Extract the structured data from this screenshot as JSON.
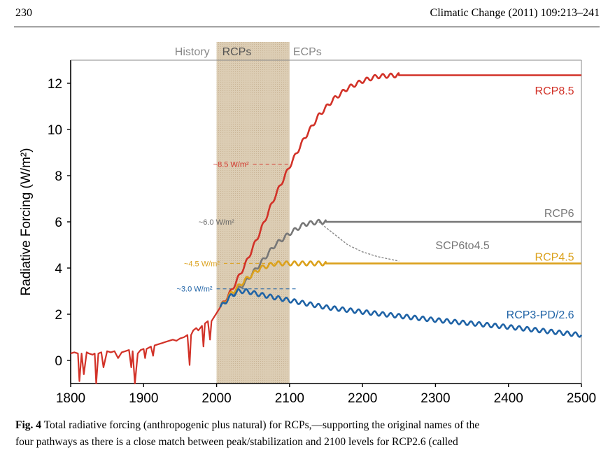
{
  "header": {
    "page_number": "230",
    "journal": "Climatic Change (2011) 109:213–241"
  },
  "caption": {
    "label": "Fig. 4",
    "text": "Total radiative forcing (anthropogenic plus natural) for RCPs,—supporting the original names of the",
    "text_cut": "four pathways as there is a close match between peak/stabilization and 2100 levels for RCP2.6 (called"
  },
  "chart_data": {
    "type": "line",
    "ylabel": "Radiative Forcing (W/m²)",
    "xlabel": "",
    "xlim": [
      1800,
      2500
    ],
    "ylim": [
      -1,
      13
    ],
    "x_ticks": [
      1800,
      1900,
      2000,
      2100,
      2200,
      2300,
      2400,
      2500
    ],
    "y_ticks": [
      0,
      2,
      4,
      6,
      8,
      10,
      12
    ],
    "grid": false,
    "periods": [
      {
        "label": "History",
        "range": [
          1800,
          2000
        ],
        "color": "#888888"
      },
      {
        "label": "RCPs",
        "range": [
          2000,
          2100
        ],
        "color": "#555555",
        "shade": "#dccdb4"
      },
      {
        "label": "ECPs",
        "range": [
          2100,
          2500
        ],
        "color": "#888888"
      }
    ],
    "series": [
      {
        "name": "RCP8.5",
        "color": "#d23228",
        "dash": false,
        "x": [
          2005,
          2020,
          2040,
          2060,
          2080,
          2100,
          2120,
          2140,
          2160,
          2180,
          2200,
          2220,
          2250,
          2300,
          2500
        ],
        "y": [
          2.3,
          3.0,
          4.2,
          5.6,
          7.1,
          8.4,
          9.6,
          10.6,
          11.3,
          11.8,
          12.1,
          12.3,
          12.35,
          12.35,
          12.35
        ]
      },
      {
        "name": "RCP6",
        "color": "#777777",
        "dash": false,
        "x": [
          2005,
          2020,
          2040,
          2060,
          2080,
          2100,
          2120,
          2140,
          2150,
          2500
        ],
        "y": [
          2.3,
          2.8,
          3.4,
          4.2,
          5.0,
          5.5,
          5.9,
          6.0,
          6.0,
          6.0
        ]
      },
      {
        "name": "SCP6to4.5",
        "color": "#888888",
        "dash": true,
        "x": [
          2140,
          2160,
          2180,
          2200,
          2220,
          2250
        ],
        "y": [
          6.0,
          5.5,
          5.0,
          4.7,
          4.5,
          4.3
        ]
      },
      {
        "name": "RCP4.5",
        "color": "#dba11c",
        "dash": false,
        "x": [
          2005,
          2020,
          2040,
          2060,
          2080,
          2100,
          2150,
          2500
        ],
        "y": [
          2.3,
          2.9,
          3.5,
          4.0,
          4.2,
          4.2,
          4.2,
          4.2
        ]
      },
      {
        "name": "RCP3-PD/2.6",
        "color": "#1f63a6",
        "dash": false,
        "x": [
          2005,
          2020,
          2030,
          2040,
          2060,
          2100,
          2150,
          2200,
          2300,
          2400,
          2500
        ],
        "y": [
          2.3,
          2.8,
          3.0,
          3.0,
          2.85,
          2.6,
          2.3,
          2.1,
          1.75,
          1.45,
          1.1
        ]
      }
    ],
    "history": {
      "color": "#d23228",
      "x": [
        1800,
        1805,
        1810,
        1812,
        1815,
        1818,
        1822,
        1825,
        1830,
        1833,
        1835,
        1838,
        1842,
        1845,
        1850,
        1855,
        1860,
        1865,
        1870,
        1875,
        1880,
        1883,
        1885,
        1888,
        1892,
        1896,
        1900,
        1902,
        1904,
        1907,
        1910,
        1913,
        1915,
        1920,
        1925,
        1930,
        1935,
        1940,
        1945,
        1950,
        1955,
        1960,
        1963,
        1965,
        1968,
        1972,
        1975,
        1980,
        1982,
        1984,
        1988,
        1991,
        1993,
        1997,
        2000,
        2005
      ],
      "y": [
        0.3,
        0.35,
        0.3,
        -0.9,
        0.3,
        -0.6,
        0.35,
        0.3,
        0.25,
        0.3,
        -1.0,
        0.3,
        0.35,
        -0.3,
        0.4,
        0.35,
        0.4,
        0.1,
        0.35,
        0.4,
        0.45,
        -0.3,
        0.4,
        -1.0,
        0.3,
        0.45,
        0.5,
        0.1,
        0.5,
        0.55,
        0.6,
        0.2,
        0.65,
        0.7,
        0.75,
        0.8,
        0.85,
        0.9,
        0.85,
        0.95,
        1.0,
        1.1,
        -0.2,
        1.1,
        1.3,
        1.4,
        1.3,
        1.5,
        0.6,
        1.6,
        1.7,
        0.9,
        1.7,
        1.9,
        2.05,
        2.3
      ]
    },
    "annotations": [
      {
        "text": "~8.5 W/m²",
        "y": 8.5,
        "x_start": 2050,
        "x_end": 2100,
        "color": "#d23228"
      },
      {
        "text": "~6.0 W/m²",
        "y": 6.0,
        "x_start": 2030,
        "x_end": 2030,
        "color": "#666666"
      },
      {
        "text": "~4.5 W/m²",
        "y": 4.2,
        "x_start": 2010,
        "x_end": 2080,
        "color": "#dba11c"
      },
      {
        "text": "~3.0 W/m²",
        "y": 3.1,
        "x_start": 2000,
        "x_end": 2110,
        "color": "#1f63a6"
      }
    ],
    "series_labels": [
      {
        "text": "RCP8.5",
        "x": 2490,
        "y": 11.7,
        "color": "#d23228"
      },
      {
        "text": "RCP6",
        "x": 2490,
        "y": 6.4,
        "color": "#777777"
      },
      {
        "text": "SCP6to4.5",
        "x": 2300,
        "y": 5.0,
        "color": "#777777"
      },
      {
        "text": "RCP4.5",
        "x": 2490,
        "y": 4.5,
        "color": "#dba11c"
      },
      {
        "text": "RCP3-PD/2.6",
        "x": 2490,
        "y": 2.0,
        "color": "#1f63a6"
      }
    ]
  }
}
